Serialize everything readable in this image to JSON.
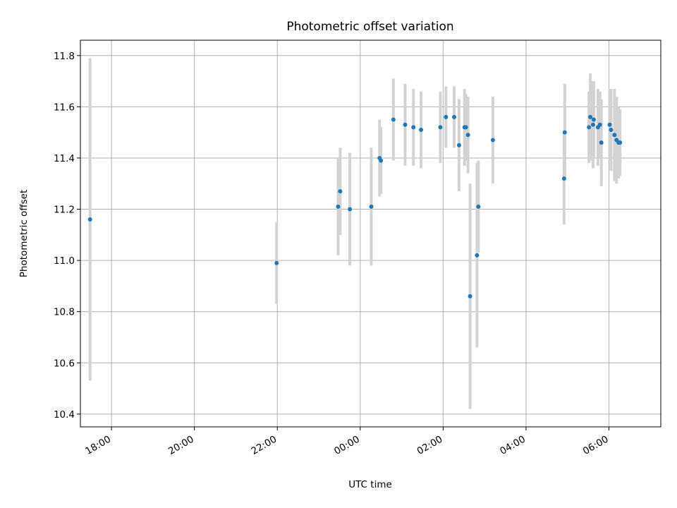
{
  "chart_data": {
    "type": "scatter",
    "title": "Photometric offset variation",
    "xlabel": "UTC time",
    "ylabel": "Photometric offset",
    "x_unit": "UTC time (HH:MM), values beyond 24:00 are the following day",
    "xlim": [
      "17:15",
      "31:15"
    ],
    "ylim": [
      10.35,
      11.86
    ],
    "grid": true,
    "x_ticks": [
      "18:00",
      "20:00",
      "22:00",
      "00:00",
      "02:00",
      "04:00",
      "06:00"
    ],
    "y_ticks": [
      "10.4",
      "10.6",
      "10.8",
      "11.0",
      "11.2",
      "11.4",
      "11.6",
      "11.8"
    ],
    "point_color": "#1f77b4",
    "errorbar_color": "#d3d3d3",
    "points": [
      {
        "x": "17:29",
        "y": 11.16,
        "err": 0.63
      },
      {
        "x": "21:59",
        "y": 10.99,
        "err": 0.16
      },
      {
        "x": "23:28",
        "y": 11.21,
        "err": 0.19
      },
      {
        "x": "23:31",
        "y": 11.27,
        "err": 0.17
      },
      {
        "x": "23:45",
        "y": 11.2,
        "err": 0.22
      },
      {
        "x": "24:16",
        "y": 11.21,
        "err": 0.23
      },
      {
        "x": "24:28",
        "y": 11.4,
        "err": 0.15
      },
      {
        "x": "24:30",
        "y": 11.39,
        "err": 0.13
      },
      {
        "x": "24:48",
        "y": 11.55,
        "err": 0.16
      },
      {
        "x": "25:05",
        "y": 11.53,
        "err": 0.16
      },
      {
        "x": "25:17",
        "y": 11.52,
        "err": 0.15
      },
      {
        "x": "25:28",
        "y": 11.51,
        "err": 0.15
      },
      {
        "x": "25:56",
        "y": 11.52,
        "err": 0.14
      },
      {
        "x": "26:04",
        "y": 11.56,
        "err": 0.12
      },
      {
        "x": "26:16",
        "y": 11.56,
        "err": 0.12
      },
      {
        "x": "26:23",
        "y": 11.45,
        "err": 0.18
      },
      {
        "x": "26:31",
        "y": 11.52,
        "err": 0.15
      },
      {
        "x": "26:33",
        "y": 11.52,
        "err": 0.13
      },
      {
        "x": "26:36",
        "y": 11.49,
        "err": 0.15
      },
      {
        "x": "26:39",
        "y": 10.86,
        "err": 0.44
      },
      {
        "x": "26:49",
        "y": 11.02,
        "err": 0.36
      },
      {
        "x": "26:51",
        "y": 11.21,
        "err": 0.18
      },
      {
        "x": "27:12",
        "y": 11.47,
        "err": 0.17
      },
      {
        "x": "28:55",
        "y": 11.32,
        "err": 0.18
      },
      {
        "x": "28:56",
        "y": 11.5,
        "err": 0.19
      },
      {
        "x": "29:31",
        "y": 11.52,
        "err": 0.14
      },
      {
        "x": "29:33",
        "y": 11.56,
        "err": 0.17
      },
      {
        "x": "29:37",
        "y": 11.53,
        "err": 0.17
      },
      {
        "x": "29:38",
        "y": 11.55,
        "err": 0.15
      },
      {
        "x": "29:44",
        "y": 11.52,
        "err": 0.15
      },
      {
        "x": "29:47",
        "y": 11.53,
        "err": 0.13
      },
      {
        "x": "29:49",
        "y": 11.46,
        "err": 0.17
      },
      {
        "x": "30:01",
        "y": 11.53,
        "err": 0.14
      },
      {
        "x": "30:03",
        "y": 11.51,
        "err": 0.16
      },
      {
        "x": "30:08",
        "y": 11.49,
        "err": 0.18
      },
      {
        "x": "30:11",
        "y": 11.47,
        "err": 0.17
      },
      {
        "x": "30:14",
        "y": 11.46,
        "err": 0.14
      },
      {
        "x": "30:16",
        "y": 11.46,
        "err": 0.13
      }
    ]
  }
}
